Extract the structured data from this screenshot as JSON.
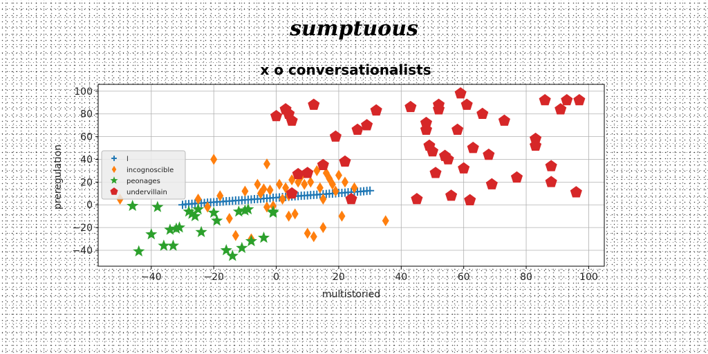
{
  "figure": {
    "suptitle": "sumptuous"
  },
  "chart_data": {
    "type": "scatter",
    "title": "x o conversationalists",
    "xlabel": "multistoried",
    "ylabel": "preregulation",
    "xlim": [
      -57,
      105
    ],
    "ylim": [
      -54,
      106
    ],
    "xticks": [
      -40,
      -20,
      0,
      20,
      40,
      60,
      80,
      100
    ],
    "yticks": [
      -40,
      -20,
      0,
      20,
      40,
      60,
      80,
      100
    ],
    "xtick_labels": [
      "−40",
      "−20",
      "0",
      "20",
      "40",
      "60",
      "80",
      "100"
    ],
    "ytick_labels": [
      "−40",
      "−20",
      "0",
      "20",
      "40",
      "60",
      "80",
      "100"
    ],
    "grid": true,
    "legend": "center-left",
    "series": [
      {
        "name": "l",
        "marker": "plus",
        "color": "#1f77b4",
        "x": [
          -30,
          -29,
          -28,
          -27,
          -26,
          -25,
          -24,
          -23,
          -22,
          -21,
          -20,
          -19,
          -18,
          -17,
          -16,
          -15,
          -14,
          -13,
          -12,
          -11,
          -10,
          -9,
          -8,
          -7,
          -6,
          -5,
          -4,
          -3,
          -2,
          -1,
          0,
          1,
          2,
          3,
          4,
          5,
          6,
          7,
          8,
          9,
          10,
          11,
          12,
          13,
          14,
          15,
          16,
          17,
          18,
          19,
          20,
          21,
          22,
          23,
          24,
          25,
          26,
          27,
          28,
          29,
          30
        ],
        "y": [
          0,
          0.5,
          0.7,
          0.9,
          1.1,
          1.4,
          1.5,
          1.7,
          2.0,
          2.1,
          2.3,
          2.6,
          2.7,
          2.9,
          3.2,
          3.3,
          3.5,
          3.8,
          3.9,
          4.1,
          4.4,
          4.5,
          4.7,
          5.0,
          5.1,
          5.3,
          5.6,
          5.7,
          5.9,
          6.2,
          6.3,
          6.5,
          6.8,
          6.9,
          7.1,
          7.4,
          7.5,
          7.7,
          8.0,
          8.1,
          8.3,
          8.6,
          8.7,
          8.9,
          9.2,
          9.3,
          9.5,
          9.8,
          9.9,
          10.1,
          10.4,
          10.5,
          10.7,
          11.0,
          11.1,
          11.3,
          11.6,
          11.7,
          11.9,
          12.2,
          12.5
        ]
      },
      {
        "name": "incognoscible",
        "marker": "diamond",
        "color": "#ff7f0e",
        "x": [
          -50,
          -25,
          -22,
          -20,
          -18,
          -15,
          -13,
          -10,
          -8,
          -6,
          -5,
          -4,
          -3,
          -3,
          -2,
          -1,
          1,
          2,
          3,
          4,
          4,
          5,
          6,
          7,
          8,
          9,
          10,
          11,
          12,
          13,
          14,
          15,
          15,
          16,
          17,
          18,
          19,
          20,
          21,
          22,
          25,
          35
        ],
        "y": [
          5,
          5,
          -2,
          40,
          8,
          -12,
          -27,
          12,
          -30,
          18,
          10,
          14,
          36,
          -2,
          13,
          -1,
          18,
          5,
          15,
          -10,
          8,
          22,
          -8,
          20,
          25,
          18,
          -25,
          20,
          -28,
          30,
          15,
          -20,
          5,
          28,
          23,
          18,
          12,
          26,
          -10,
          20,
          15,
          -14
        ]
      },
      {
        "name": "peonages",
        "marker": "star",
        "color": "#2ca02c",
        "x": [
          -46,
          -44,
          -40,
          -38,
          -36,
          -34,
          -33,
          -32,
          -31,
          -28,
          -27,
          -26,
          -25,
          -24,
          -20,
          -19,
          -16,
          -14,
          -12,
          -11,
          -10,
          -9,
          -8,
          -4,
          -1,
          -1
        ],
        "y": [
          -1,
          -41,
          -26,
          -2,
          -36,
          -22,
          -36,
          -21,
          -20,
          -6,
          -8,
          -10,
          -4,
          -24,
          -7,
          -14,
          -40,
          -45,
          -6,
          -38,
          -5,
          -4,
          -32,
          -29,
          -6,
          -7
        ]
      },
      {
        "name": "undervillain",
        "marker": "pentagon",
        "color": "#d62728",
        "x": [
          0,
          3,
          4,
          5,
          5,
          7,
          10,
          12,
          15,
          19,
          22,
          26,
          29,
          32,
          43,
          45,
          48,
          48,
          49,
          50,
          51,
          52,
          52,
          54,
          55,
          56,
          58,
          59,
          60,
          61,
          62,
          63,
          66,
          68,
          69,
          73,
          77,
          83,
          83,
          86,
          88,
          88,
          91,
          93,
          96,
          97,
          24
        ],
        "y": [
          78,
          84,
          80,
          74,
          10,
          27,
          28,
          88,
          35,
          60,
          38,
          66,
          70,
          83,
          86,
          5,
          72,
          66,
          52,
          47,
          28,
          88,
          84,
          43,
          40,
          8,
          66,
          98,
          32,
          88,
          4,
          50,
          80,
          44,
          18,
          74,
          24,
          58,
          52,
          92,
          34,
          20,
          84,
          92,
          11,
          92,
          5
        ]
      }
    ]
  }
}
